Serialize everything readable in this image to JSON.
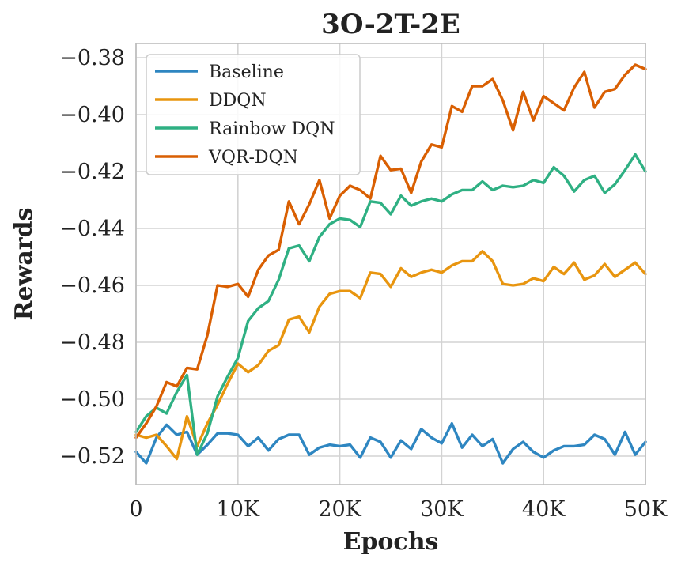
{
  "chart_data": {
    "type": "line",
    "title": "3O-2T-2E",
    "xlabel": "Epochs",
    "ylabel": "Rewards",
    "xlim": [
      0,
      50000
    ],
    "ylim": [
      -0.53,
      -0.375
    ],
    "x_ticks": [
      0,
      10000,
      20000,
      30000,
      40000,
      50000
    ],
    "x_tick_labels": [
      "0",
      "10K",
      "20K",
      "30K",
      "40K",
      "50K"
    ],
    "y_ticks": [
      -0.52,
      -0.5,
      -0.48,
      -0.46,
      -0.44,
      -0.42,
      -0.4,
      -0.38
    ],
    "y_tick_labels": [
      "−0.52",
      "−0.50",
      "−0.48",
      "−0.46",
      "−0.44",
      "−0.42",
      "−0.40",
      "−0.38"
    ],
    "grid": true,
    "legend_position": "top-left",
    "x": [
      0,
      1000,
      2000,
      3000,
      4000,
      5000,
      6000,
      7000,
      8000,
      9000,
      10000,
      11000,
      12000,
      13000,
      14000,
      15000,
      16000,
      17000,
      18000,
      19000,
      20000,
      21000,
      22000,
      23000,
      24000,
      25000,
      26000,
      27000,
      28000,
      29000,
      30000,
      31000,
      32000,
      33000,
      34000,
      35000,
      36000,
      37000,
      38000,
      39000,
      40000,
      41000,
      42000,
      43000,
      44000,
      45000,
      46000,
      47000,
      48000,
      49000,
      50000
    ],
    "series": [
      {
        "name": "Baseline",
        "color": "#2e86c1",
        "values": [
          -0.5185,
          -0.5225,
          -0.5135,
          -0.509,
          -0.5125,
          -0.5115,
          -0.5195,
          -0.516,
          -0.512,
          -0.512,
          -0.5125,
          -0.5165,
          -0.5135,
          -0.518,
          -0.514,
          -0.5125,
          -0.5125,
          -0.5195,
          -0.517,
          -0.516,
          -0.5165,
          -0.516,
          -0.5205,
          -0.5135,
          -0.515,
          -0.5205,
          -0.5145,
          -0.5175,
          -0.5105,
          -0.5135,
          -0.5155,
          -0.5085,
          -0.517,
          -0.5125,
          -0.5165,
          -0.514,
          -0.5225,
          -0.5175,
          -0.515,
          -0.5185,
          -0.5205,
          -0.518,
          -0.5165,
          -0.5165,
          -0.516,
          -0.5125,
          -0.514,
          -0.5195,
          -0.5115,
          -0.5195,
          -0.515
        ]
      },
      {
        "name": "DDQN",
        "color": "#e8950f",
        "values": [
          -0.5125,
          -0.5135,
          -0.5125,
          -0.5165,
          -0.521,
          -0.506,
          -0.5165,
          -0.5085,
          -0.502,
          -0.4945,
          -0.4875,
          -0.4905,
          -0.488,
          -0.483,
          -0.481,
          -0.472,
          -0.471,
          -0.4765,
          -0.4675,
          -0.463,
          -0.462,
          -0.462,
          -0.4645,
          -0.4555,
          -0.456,
          -0.4605,
          -0.454,
          -0.457,
          -0.4555,
          -0.4545,
          -0.4555,
          -0.453,
          -0.4515,
          -0.4515,
          -0.448,
          -0.4515,
          -0.4595,
          -0.46,
          -0.4595,
          -0.4575,
          -0.4585,
          -0.4535,
          -0.456,
          -0.452,
          -0.458,
          -0.4565,
          -0.4525,
          -0.457,
          -0.4545,
          -0.452,
          -0.456
        ]
      },
      {
        "name": "Rainbow DQN",
        "color": "#2fb083",
        "values": [
          -0.5115,
          -0.506,
          -0.503,
          -0.505,
          -0.4975,
          -0.4915,
          -0.5195,
          -0.512,
          -0.499,
          -0.492,
          -0.4855,
          -0.4725,
          -0.468,
          -0.4655,
          -0.458,
          -0.447,
          -0.446,
          -0.4515,
          -0.443,
          -0.4385,
          -0.4365,
          -0.437,
          -0.4395,
          -0.4305,
          -0.431,
          -0.435,
          -0.4285,
          -0.432,
          -0.4305,
          -0.4295,
          -0.4305,
          -0.428,
          -0.4265,
          -0.4265,
          -0.4235,
          -0.4265,
          -0.425,
          -0.4255,
          -0.425,
          -0.423,
          -0.424,
          -0.4185,
          -0.4215,
          -0.427,
          -0.423,
          -0.4215,
          -0.4275,
          -0.4245,
          -0.4195,
          -0.414,
          -0.42
        ]
      },
      {
        "name": "VQR-DQN",
        "color": "#d95f02",
        "values": [
          -0.5135,
          -0.5085,
          -0.5025,
          -0.494,
          -0.4955,
          -0.489,
          -0.4895,
          -0.4775,
          -0.46,
          -0.4605,
          -0.4595,
          -0.464,
          -0.4545,
          -0.4495,
          -0.4475,
          -0.4305,
          -0.4385,
          -0.4315,
          -0.423,
          -0.4365,
          -0.4285,
          -0.425,
          -0.4265,
          -0.4295,
          -0.4145,
          -0.4195,
          -0.419,
          -0.4275,
          -0.4165,
          -0.4105,
          -0.4115,
          -0.397,
          -0.399,
          -0.39,
          -0.39,
          -0.3875,
          -0.395,
          -0.4055,
          -0.392,
          -0.402,
          -0.3935,
          -0.396,
          -0.3985,
          -0.3905,
          -0.385,
          -0.3975,
          -0.392,
          -0.391,
          -0.386,
          -0.3825,
          -0.384
        ]
      }
    ]
  }
}
